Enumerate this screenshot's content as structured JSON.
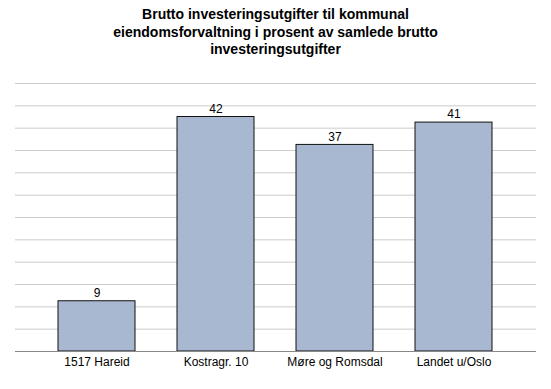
{
  "chart_data": {
    "type": "bar",
    "title": "Brutto investeringsutgifter til kommunal\neiendomsforvaltning i prosent av samlede brutto\ninvesteringsutgifter",
    "categories": [
      "1517 Hareid",
      "Kostragr. 10",
      "Møre og Romsdal",
      "Landet u/Oslo"
    ],
    "values": [
      9,
      42,
      37,
      41
    ],
    "color": "#a8b8d0",
    "ylim": [
      0,
      48
    ],
    "yticks": [
      0,
      4,
      8,
      12,
      16,
      20,
      24,
      28,
      32,
      36,
      40,
      44,
      48
    ],
    "grid": true,
    "data_labels": true,
    "tick_labels": "x"
  }
}
